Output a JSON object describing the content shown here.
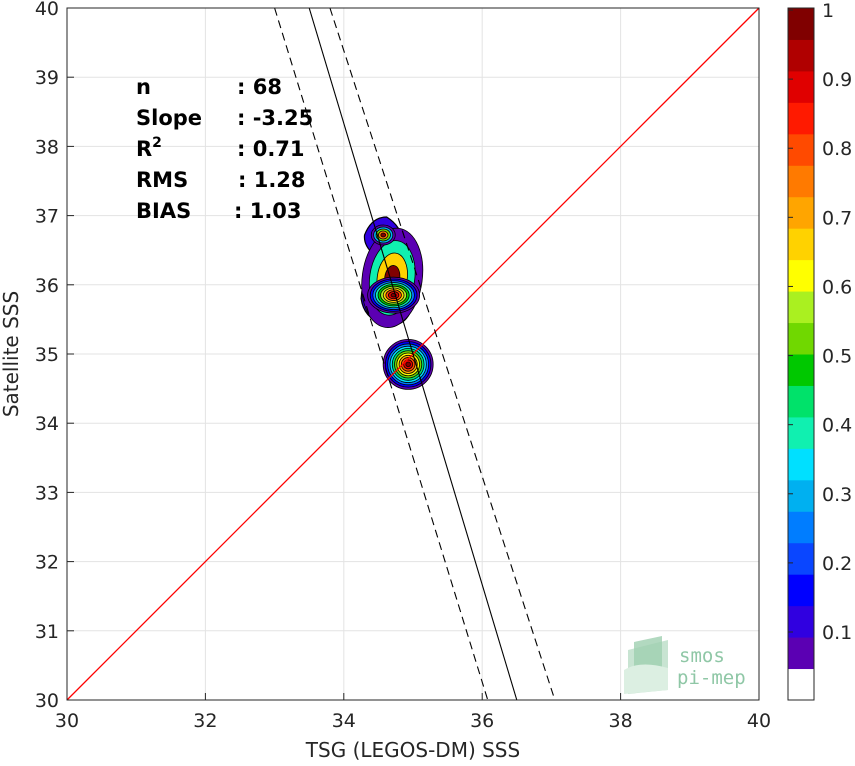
{
  "chart_data": {
    "type": "heatmap",
    "xlabel": "TSG (LEGOS-DM) SSS",
    "ylabel": "Satellite SSS",
    "xlim": [
      30,
      40
    ],
    "ylim": [
      30,
      40
    ],
    "xticks": [
      30,
      32,
      34,
      36,
      38,
      40
    ],
    "yticks": [
      30,
      31,
      32,
      33,
      34,
      35,
      36,
      37,
      38,
      39,
      40
    ],
    "grid": true,
    "stats": [
      {
        "label": "n",
        "value": ": 68"
      },
      {
        "label": "Slope",
        "value": ": -3.25"
      },
      {
        "label": "R",
        "sup": "2",
        "value": ": 0.71"
      },
      {
        "label": "RMS",
        "value": ": 1.28"
      },
      {
        "label": "BIAS",
        "value": ": 1.03"
      }
    ],
    "identity_line": {
      "color": "#ff0000",
      "from": [
        30,
        30
      ],
      "to": [
        40,
        40
      ]
    },
    "regression_line": {
      "color": "#000000",
      "from": [
        33.5,
        40
      ],
      "to": [
        36.5,
        30
      ]
    },
    "confidence_lines": [
      {
        "from": [
          33.0,
          40
        ],
        "to": [
          36.08,
          30
        ]
      },
      {
        "from": [
          33.8,
          40
        ],
        "to": [
          37.05,
          30
        ]
      }
    ],
    "density_peaks": [
      {
        "x": 34.72,
        "y": 35.85,
        "level": 1.0
      },
      {
        "x": 34.93,
        "y": 34.85,
        "level": 1.0
      },
      {
        "x": 34.57,
        "y": 36.72,
        "level": 0.4
      }
    ],
    "colorbar": {
      "ticks": [
        "0.1",
        "0.2",
        "0.3",
        "0.4",
        "0.5",
        "0.6",
        "0.7",
        "0.8",
        "0.9",
        "1"
      ],
      "colors": [
        "#ffffff",
        "#5b00b3",
        "#3000e0",
        "#0000ff",
        "#0a46ff",
        "#007dff",
        "#00b0f0",
        "#00e0ff",
        "#10f0b0",
        "#00e26a",
        "#00c800",
        "#70d800",
        "#aaf020",
        "#ffff00",
        "#ffd200",
        "#ffa500",
        "#ff7a00",
        "#ff4a00",
        "#ff1a00",
        "#e00000",
        "#b00000",
        "#800000"
      ]
    }
  },
  "logo": {
    "line1": "smos",
    "line2": "pi-mep"
  }
}
